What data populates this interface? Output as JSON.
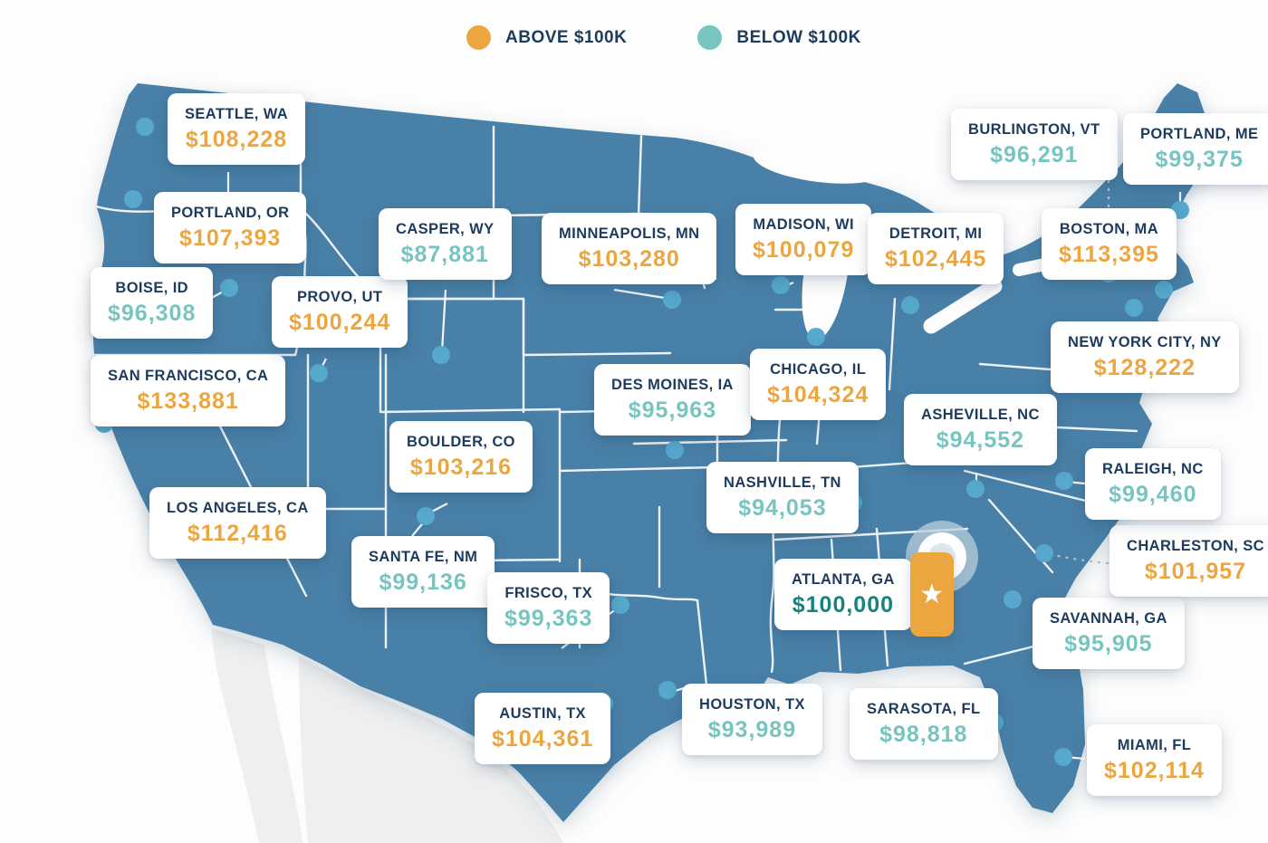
{
  "legend": {
    "items": [
      {
        "id": "above",
        "label": "ABOVE $100K",
        "color": "#eca640"
      },
      {
        "id": "below",
        "label": "BELOW $100K",
        "color": "#77c4c1"
      }
    ]
  },
  "colors": {
    "above": "#eca640",
    "below": "#77c4c1",
    "highlight_value": "#17837f",
    "city_name": "#1d3b5d",
    "map_fill": "#4a80a7",
    "city_dot": "#56a8cc",
    "mexico_fill": "#efefef"
  },
  "icons": {
    "star": "★",
    "legend_dot_above": "circle",
    "legend_dot_below": "circle"
  },
  "cities": [
    {
      "id": "seattle-wa",
      "name": "SEATTLE, WA",
      "value": "$108,228",
      "category": "above"
    },
    {
      "id": "portland-or",
      "name": "PORTLAND, OR",
      "value": "$107,393",
      "category": "above"
    },
    {
      "id": "boise-id",
      "name": "BOISE, ID",
      "value": "$96,308",
      "category": "below"
    },
    {
      "id": "san-francisco-ca",
      "name": "SAN FRANCISCO, CA",
      "value": "$133,881",
      "category": "above"
    },
    {
      "id": "los-angeles-ca",
      "name": "LOS ANGELES, CA",
      "value": "$112,416",
      "category": "above"
    },
    {
      "id": "provo-ut",
      "name": "PROVO, UT",
      "value": "$100,244",
      "category": "above"
    },
    {
      "id": "casper-wy",
      "name": "CASPER, WY",
      "value": "$87,881",
      "category": "below"
    },
    {
      "id": "boulder-co",
      "name": "BOULDER, CO",
      "value": "$103,216",
      "category": "above"
    },
    {
      "id": "santa-fe-nm",
      "name": "SANTA FE, NM",
      "value": "$99,136",
      "category": "below"
    },
    {
      "id": "minneapolis-mn",
      "name": "MINNEAPOLIS, MN",
      "value": "$103,280",
      "category": "above"
    },
    {
      "id": "des-moines-ia",
      "name": "DES MOINES, IA",
      "value": "$95,963",
      "category": "below"
    },
    {
      "id": "madison-wi",
      "name": "MADISON, WI",
      "value": "$100,079",
      "category": "above"
    },
    {
      "id": "chicago-il",
      "name": "CHICAGO, IL",
      "value": "$104,324",
      "category": "above"
    },
    {
      "id": "detroit-mi",
      "name": "DETROIT, MI",
      "value": "$102,445",
      "category": "above"
    },
    {
      "id": "burlington-vt",
      "name": "BURLINGTON, VT",
      "value": "$96,291",
      "category": "below"
    },
    {
      "id": "portland-me",
      "name": "PORTLAND, ME",
      "value": "$99,375",
      "category": "below"
    },
    {
      "id": "boston-ma",
      "name": "BOSTON, MA",
      "value": "$113,395",
      "category": "above"
    },
    {
      "id": "new-york-city-ny",
      "name": "NEW YORK CITY, NY",
      "value": "$128,222",
      "category": "above"
    },
    {
      "id": "nashville-tn",
      "name": "NASHVILLE, TN",
      "value": "$94,053",
      "category": "below"
    },
    {
      "id": "asheville-nc",
      "name": "ASHEVILLE, NC",
      "value": "$94,552",
      "category": "below"
    },
    {
      "id": "raleigh-nc",
      "name": "RALEIGH, NC",
      "value": "$99,460",
      "category": "below"
    },
    {
      "id": "charleston-sc",
      "name": "CHARLESTON, SC",
      "value": "$101,957",
      "category": "above"
    },
    {
      "id": "atlanta-ga",
      "name": "ATLANTA, GA",
      "value": "$100,000",
      "category": "highlight"
    },
    {
      "id": "savannah-ga",
      "name": "SAVANNAH, GA",
      "value": "$95,905",
      "category": "below"
    },
    {
      "id": "frisco-tx",
      "name": "FRISCO, TX",
      "value": "$99,363",
      "category": "below"
    },
    {
      "id": "austin-tx",
      "name": "AUSTIN, TX",
      "value": "$104,361",
      "category": "above"
    },
    {
      "id": "houston-tx",
      "name": "HOUSTON, TX",
      "value": "$93,989",
      "category": "below"
    },
    {
      "id": "sarasota-fl",
      "name": "SARASOTA, FL",
      "value": "$98,818",
      "category": "below"
    },
    {
      "id": "miami-fl",
      "name": "MIAMI, FL",
      "value": "$102,114",
      "category": "above"
    }
  ]
}
